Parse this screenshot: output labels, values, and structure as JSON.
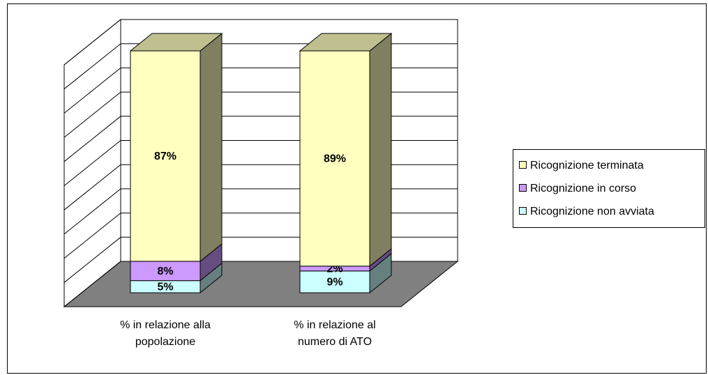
{
  "chart_data": {
    "type": "bar3d_stacked",
    "categories": [
      "% in relazione alla popolazione",
      "% in relazione al numero di ATO"
    ],
    "series": [
      {
        "name": "Ricognizione non avviata",
        "color": "#ccffff",
        "values": [
          5,
          9
        ],
        "value_labels": [
          "5%",
          "9%"
        ]
      },
      {
        "name": "Ricognizione in corso",
        "color": "#cc99ff",
        "values": [
          8,
          2
        ],
        "value_labels": [
          "8%",
          "2%"
        ]
      },
      {
        "name": "Ricognizione terminata",
        "color": "#ffffc0",
        "values": [
          87,
          89
        ],
        "value_labels": [
          "87%",
          "89%"
        ]
      }
    ],
    "ylim": [
      0,
      100
    ],
    "yticks": [
      0,
      10,
      20,
      30,
      40,
      50,
      60,
      70,
      80,
      90,
      100
    ],
    "grid": true,
    "legend": "right"
  }
}
